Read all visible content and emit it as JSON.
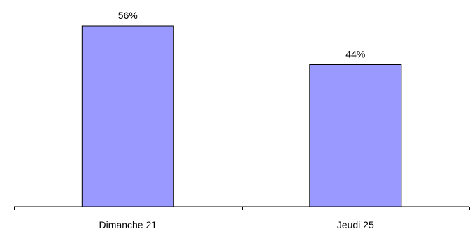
{
  "chart_data": {
    "type": "bar",
    "categories": [
      "Dimanche 21",
      "Jeudi 25"
    ],
    "values": [
      56,
      44
    ],
    "value_labels": [
      "56%",
      "44%"
    ],
    "ylim": [
      0,
      60
    ],
    "grid": false,
    "legend": "none",
    "bar_color": "#9999ff",
    "bar_edge_color": "#000000"
  }
}
